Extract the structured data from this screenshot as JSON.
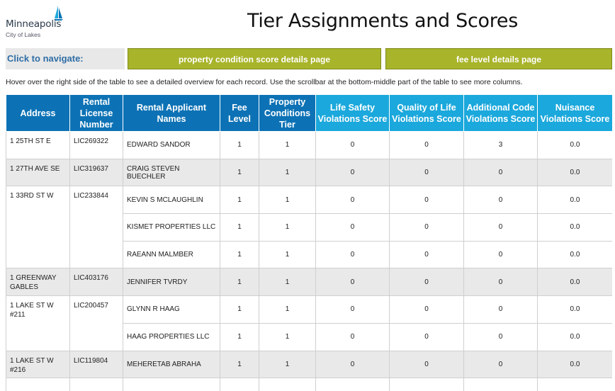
{
  "logo": {
    "name": "Minneapolis",
    "tagline": "City of Lakes"
  },
  "title": "Tier Assignments and Scores",
  "nav": {
    "label": "Click to navigate:",
    "buttons": [
      "property condition score details page",
      "fee level details page"
    ]
  },
  "hint": "Hover over the right side of the table to see a detailed overview for each record. Use the scrollbar at the bottom-middle part of the table to see more columns.",
  "table": {
    "headers": [
      "Address",
      "Rental License Number",
      "Rental Applicant Names",
      "Fee Level",
      "Property Conditions Tier",
      "Life Safety Violations Score",
      "Quality of Life Violations Score",
      "Additional Code Violations Score",
      "Nuisance Violations Score"
    ],
    "groups": [
      {
        "address": "1 25TH ST E",
        "license": "LIC269322",
        "rows": [
          {
            "applicant": "EDWARD  SANDOR",
            "fee": "1",
            "tier": "1",
            "life_safety": "0",
            "quality_of_life": "0",
            "additional_code": "3",
            "nuisance": "0.0"
          }
        ]
      },
      {
        "address": "1 27TH AVE SE",
        "license": "LIC319637",
        "rows": [
          {
            "applicant": "CRAIG STEVEN BUECHLER",
            "fee": "1",
            "tier": "1",
            "life_safety": "0",
            "quality_of_life": "0",
            "additional_code": "0",
            "nuisance": "0.0"
          }
        ]
      },
      {
        "address": "1 33RD ST W",
        "license": "LIC233844",
        "rows": [
          {
            "applicant": "KEVIN S MCLAUGHLIN",
            "fee": "1",
            "tier": "1",
            "life_safety": "0",
            "quality_of_life": "0",
            "additional_code": "0",
            "nuisance": "0.0"
          },
          {
            "applicant": "KISMET PROPERTIES LLC",
            "fee": "1",
            "tier": "1",
            "life_safety": "0",
            "quality_of_life": "0",
            "additional_code": "0",
            "nuisance": "0.0"
          },
          {
            "applicant": "RAEANN MALMBER",
            "fee": "1",
            "tier": "1",
            "life_safety": "0",
            "quality_of_life": "0",
            "additional_code": "0",
            "nuisance": "0.0"
          }
        ]
      },
      {
        "address": "1 GREENWAY GABLES",
        "license": "LIC403176",
        "rows": [
          {
            "applicant": "JENNIFER TVRDY",
            "fee": "1",
            "tier": "1",
            "life_safety": "0",
            "quality_of_life": "0",
            "additional_code": "0",
            "nuisance": "0.0"
          }
        ]
      },
      {
        "address": "1 LAKE ST W #211",
        "license": "LIC200457",
        "rows": [
          {
            "applicant": "GLYNN R HAAG",
            "fee": "1",
            "tier": "1",
            "life_safety": "0",
            "quality_of_life": "0",
            "additional_code": "0",
            "nuisance": "0.0"
          },
          {
            "applicant": "HAAG PROPERTIES LLC",
            "fee": "1",
            "tier": "1",
            "life_safety": "0",
            "quality_of_life": "0",
            "additional_code": "0",
            "nuisance": "0.0"
          }
        ]
      },
      {
        "address": "1 LAKE ST W #216",
        "license": "LIC119804",
        "rows": [
          {
            "applicant": "MEHERETAB  ABRAHA",
            "fee": "1",
            "tier": "1",
            "life_safety": "0",
            "quality_of_life": "0",
            "additional_code": "0",
            "nuisance": "0.0"
          }
        ]
      },
      {
        "address": "",
        "license": "",
        "rows": [
          {
            "applicant": "",
            "fee": "",
            "tier": "",
            "life_safety": "",
            "quality_of_life": "",
            "additional_code": "",
            "nuisance": ""
          }
        ]
      }
    ]
  }
}
